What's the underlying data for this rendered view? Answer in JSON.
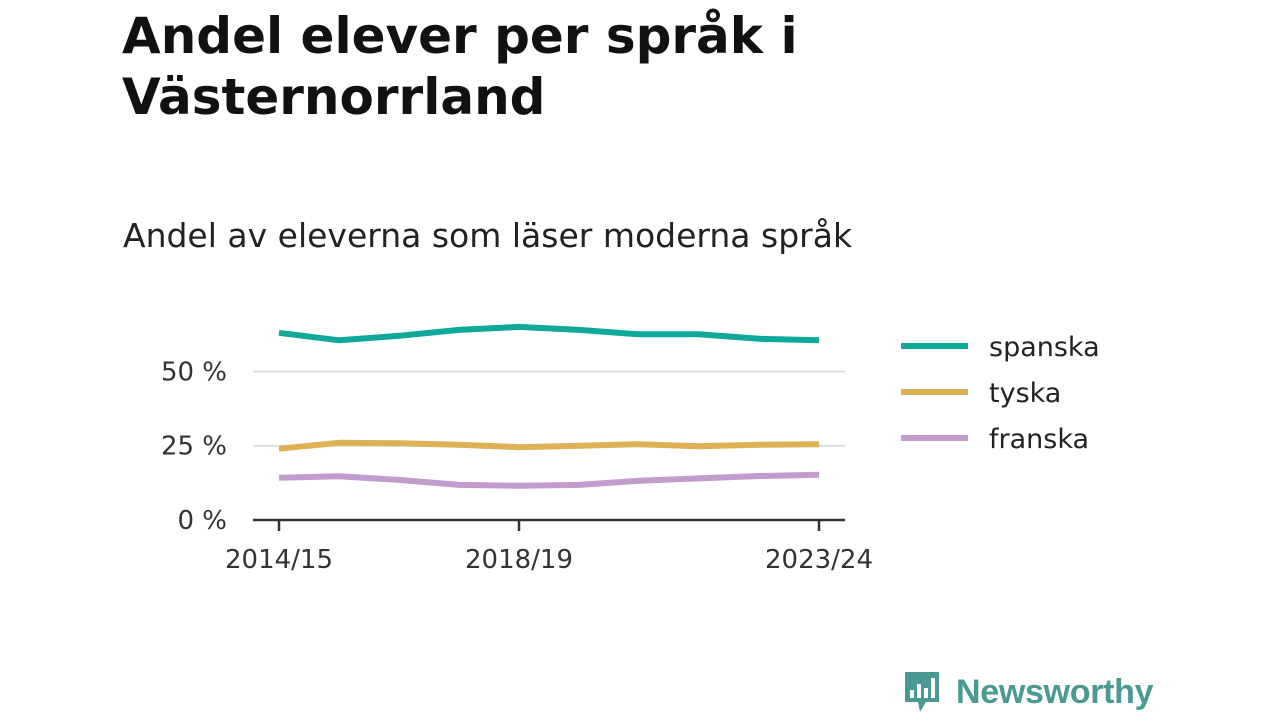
{
  "title": "Andel elever per språk i Västernorrland",
  "subtitle": "Andel av eleverna som läser moderna språk",
  "brand": {
    "name": "Newsworthy",
    "color": "#4a9a93",
    "icon": "newsworthy-chart-bubble-icon"
  },
  "chart_data": {
    "type": "line",
    "title": "Andel elever per språk i Västernorrland",
    "subtitle": "Andel av eleverna som läser moderna språk",
    "x": [
      "2014/15",
      "2015/16",
      "2016/17",
      "2017/18",
      "2018/19",
      "2019/20",
      "2020/21",
      "2021/22",
      "2022/23",
      "2023/24"
    ],
    "x_tick_labels": [
      "2014/15",
      "2018/19",
      "2023/24"
    ],
    "x_tick_values": [
      "2014/15",
      "2018/19",
      "2023/24"
    ],
    "y_ticks": [
      0,
      25,
      50
    ],
    "y_tick_labels": [
      "0 %",
      "25 %",
      "50 %"
    ],
    "ylim": [
      0,
      69
    ],
    "grid": true,
    "legend_position": "right",
    "series": [
      {
        "name": "spanska",
        "color": "#0fa89b",
        "values": [
          63,
          60.5,
          62,
          64,
          65,
          64,
          62.5,
          62.5,
          61,
          60.5
        ]
      },
      {
        "name": "tyska",
        "color": "#ddb154",
        "values": [
          24,
          26,
          25.8,
          25.3,
          24.5,
          25,
          25.5,
          24.8,
          25.3,
          25.5
        ]
      },
      {
        "name": "franska",
        "color": "#c39ccf",
        "values": [
          14.2,
          14.7,
          13.5,
          11.8,
          11.5,
          11.8,
          13.2,
          14,
          14.8,
          15.2
        ]
      }
    ]
  }
}
